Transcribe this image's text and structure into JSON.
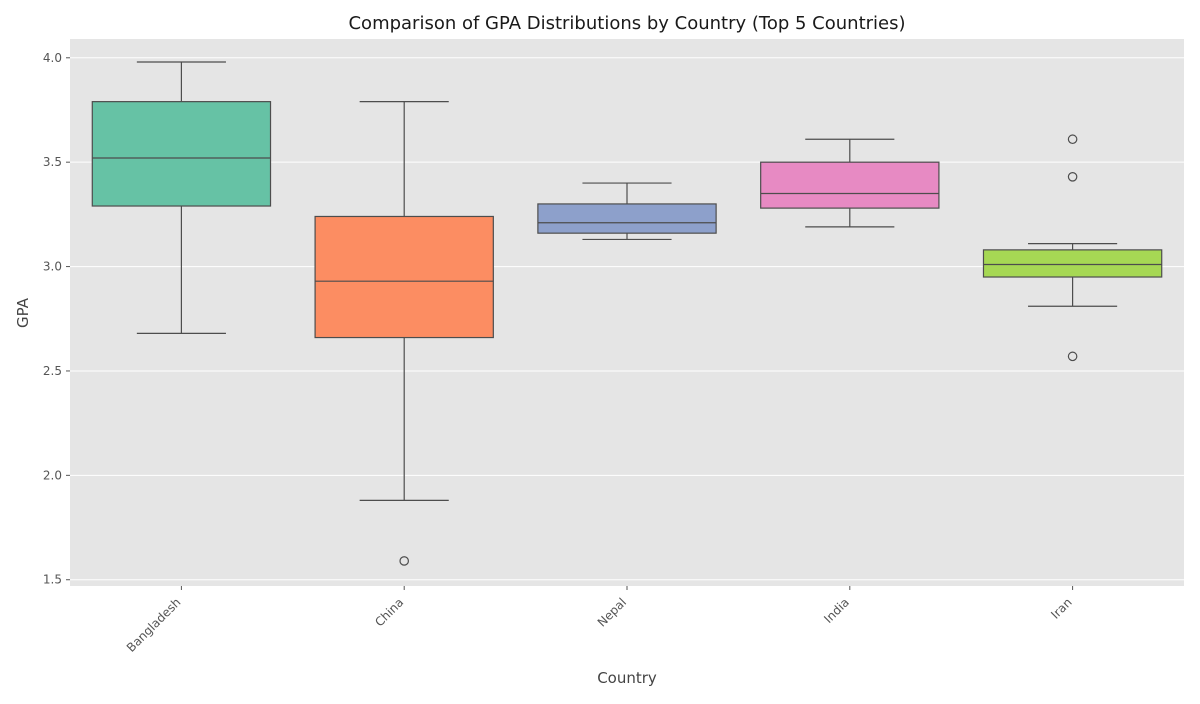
{
  "chart_data": {
    "type": "box",
    "title": "Comparison of GPA Distributions by Country (Top 5 Countries)",
    "xlabel": "Country",
    "ylabel": "GPA",
    "ylim": [
      1.47,
      4.09
    ],
    "yticks": [
      1.5,
      2.0,
      2.5,
      3.0,
      3.5,
      4.0
    ],
    "ytick_labels": [
      "1.5",
      "2.0",
      "2.5",
      "3.0",
      "3.5",
      "4.0"
    ],
    "grid": true,
    "categories": [
      "Bangladesh",
      "China",
      "Nepal",
      "India",
      "Iran"
    ],
    "boxes": [
      {
        "category": "Bangladesh",
        "whisker_low": 2.68,
        "q1": 3.29,
        "median": 3.52,
        "q3": 3.79,
        "whisker_high": 3.98,
        "outliers": [],
        "color": "#66c2a5"
      },
      {
        "category": "China",
        "whisker_low": 1.88,
        "q1": 2.66,
        "median": 2.93,
        "q3": 3.24,
        "whisker_high": 3.79,
        "outliers": [
          1.59
        ],
        "color": "#fc8d62"
      },
      {
        "category": "Nepal",
        "whisker_low": 3.13,
        "q1": 3.16,
        "median": 3.21,
        "q3": 3.3,
        "whisker_high": 3.4,
        "outliers": [],
        "color": "#8da0cb"
      },
      {
        "category": "India",
        "whisker_low": 3.19,
        "q1": 3.28,
        "median": 3.35,
        "q3": 3.5,
        "whisker_high": 3.61,
        "outliers": [],
        "color": "#e78ac3"
      },
      {
        "category": "Iran",
        "whisker_low": 2.81,
        "q1": 2.95,
        "median": 3.01,
        "q3": 3.08,
        "whisker_high": 3.11,
        "outliers": [
          3.61,
          3.43,
          2.57
        ],
        "color": "#a6d854"
      }
    ],
    "colors": {
      "background": "#e5e5e5",
      "grid": "#ffffff",
      "line": "#4d4d4d"
    }
  }
}
